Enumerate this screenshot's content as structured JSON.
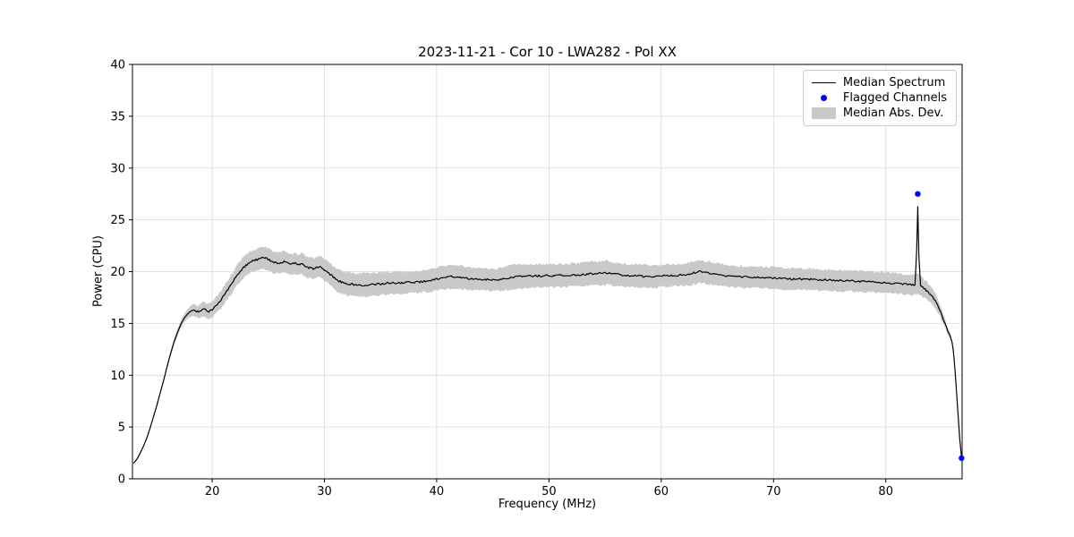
{
  "chart_data": {
    "type": "line",
    "title": "2023-11-21 - Cor 10 - LWA282 - Pol XX",
    "xlabel": "Frequency (MHz)",
    "ylabel": "Power (CPU)",
    "xlim": [
      12.9,
      86.8
    ],
    "ylim": [
      0,
      40
    ],
    "xticks": [
      20,
      30,
      40,
      50,
      60,
      70,
      80
    ],
    "yticks": [
      0,
      5,
      10,
      15,
      20,
      25,
      30,
      35,
      40
    ],
    "grid": true,
    "legend": {
      "position": "upper right",
      "median": "Median Spectrum",
      "flagged": "Flagged Channels",
      "mad": "Median Abs. Dev."
    },
    "colors": {
      "median_line": "#000000",
      "flagged": "#0000ff",
      "mad_band": "#c9c9c9",
      "grid": "#d9d9d9",
      "axes": "#000000"
    },
    "noise_amplitude": 0.09,
    "noise_step": 0.12,
    "flagged_channels": [
      [
        82.85,
        27.5
      ],
      [
        86.75,
        2.0
      ]
    ],
    "spectrum_format": [
      "freq_mhz",
      "median_power",
      "mad",
      "band_center_optional"
    ],
    "spectrum": [
      [
        13.0,
        1.5,
        0.05
      ],
      [
        13.3,
        1.9,
        0.06
      ],
      [
        13.6,
        2.5,
        0.07
      ],
      [
        13.9,
        3.2,
        0.08
      ],
      [
        14.2,
        4.0,
        0.09
      ],
      [
        14.5,
        5.0,
        0.1
      ],
      [
        14.8,
        6.1,
        0.12
      ],
      [
        15.1,
        7.2,
        0.14
      ],
      [
        15.4,
        8.4,
        0.16
      ],
      [
        15.7,
        9.6,
        0.18
      ],
      [
        16.0,
        10.9,
        0.2
      ],
      [
        16.3,
        12.1,
        0.24
      ],
      [
        16.6,
        13.2,
        0.28
      ],
      [
        16.9,
        14.1,
        0.32
      ],
      [
        17.2,
        14.9,
        0.36
      ],
      [
        17.5,
        15.5,
        0.4
      ],
      [
        17.8,
        15.9,
        0.45
      ],
      [
        18.0,
        16.1,
        0.5
      ],
      [
        18.2,
        16.25,
        0.55
      ],
      [
        18.4,
        16.3,
        0.58
      ],
      [
        18.6,
        16.15,
        0.6
      ],
      [
        18.8,
        16.1,
        0.62
      ],
      [
        19.0,
        16.2,
        0.65
      ],
      [
        19.2,
        16.35,
        0.68
      ],
      [
        19.4,
        16.3,
        0.7
      ],
      [
        19.6,
        16.15,
        0.72
      ],
      [
        19.8,
        16.2,
        0.74
      ],
      [
        20.0,
        16.35,
        0.76
      ],
      [
        20.2,
        16.55,
        0.78
      ],
      [
        20.4,
        16.8,
        0.8
      ],
      [
        20.6,
        17.05,
        0.82
      ],
      [
        20.8,
        17.3,
        0.85
      ],
      [
        21.0,
        17.65,
        0.87
      ],
      [
        21.2,
        17.95,
        0.88
      ],
      [
        21.4,
        18.3,
        0.9
      ],
      [
        21.6,
        18.6,
        0.92
      ],
      [
        21.8,
        18.95,
        0.94
      ],
      [
        22.0,
        19.3,
        0.95
      ],
      [
        22.2,
        19.6,
        0.96
      ],
      [
        22.4,
        19.9,
        0.97
      ],
      [
        22.6,
        20.15,
        0.98
      ],
      [
        22.8,
        20.4,
        0.99
      ],
      [
        23.0,
        20.6,
        1.0
      ],
      [
        23.2,
        20.75,
        1.0
      ],
      [
        23.4,
        20.9,
        1.02
      ],
      [
        23.6,
        21.0,
        1.03
      ],
      [
        23.8,
        21.1,
        1.04
      ],
      [
        24.0,
        21.15,
        1.05
      ],
      [
        24.2,
        21.2,
        1.06
      ],
      [
        24.4,
        21.3,
        1.07
      ],
      [
        24.6,
        21.35,
        1.08
      ],
      [
        24.8,
        21.3,
        1.08
      ],
      [
        25.0,
        21.2,
        1.07
      ],
      [
        25.2,
        21.05,
        1.06
      ],
      [
        25.4,
        20.95,
        1.05
      ],
      [
        25.6,
        20.9,
        1.04
      ],
      [
        25.8,
        20.85,
        1.04
      ],
      [
        26.0,
        20.8,
        1.03
      ],
      [
        26.2,
        20.9,
        1.03
      ],
      [
        26.4,
        21.0,
        1.02
      ],
      [
        26.6,
        20.9,
        1.02
      ],
      [
        26.8,
        20.8,
        1.01
      ],
      [
        27.0,
        20.7,
        1.0
      ],
      [
        27.2,
        20.75,
        1.0
      ],
      [
        27.4,
        20.8,
        1.0
      ],
      [
        27.6,
        20.65,
        1.0
      ],
      [
        27.8,
        20.7,
        1.0
      ],
      [
        28.0,
        20.8,
        1.0
      ],
      [
        28.2,
        20.6,
        1.0
      ],
      [
        28.4,
        20.45,
        1.0
      ],
      [
        28.6,
        20.35,
        1.0
      ],
      [
        28.8,
        20.4,
        1.0
      ],
      [
        29.0,
        20.3,
        1.0
      ],
      [
        29.2,
        20.35,
        1.0
      ],
      [
        29.4,
        20.45,
        1.0
      ],
      [
        29.6,
        20.5,
        1.02
      ],
      [
        29.8,
        20.35,
        1.02
      ],
      [
        30.0,
        20.2,
        1.03
      ],
      [
        30.2,
        20.05,
        1.04
      ],
      [
        30.4,
        19.85,
        1.05
      ],
      [
        30.6,
        19.65,
        1.05
      ],
      [
        30.8,
        19.45,
        1.06
      ],
      [
        31.0,
        19.3,
        1.07
      ],
      [
        31.2,
        19.15,
        1.08
      ],
      [
        31.4,
        19.05,
        1.08
      ],
      [
        31.6,
        18.95,
        1.09
      ],
      [
        31.8,
        18.9,
        1.1
      ],
      [
        32.0,
        18.85,
        1.1
      ],
      [
        32.3,
        18.8,
        1.1
      ],
      [
        32.6,
        18.75,
        1.1
      ],
      [
        32.9,
        18.7,
        1.12
      ],
      [
        33.2,
        18.68,
        1.12
      ],
      [
        33.5,
        18.7,
        1.13
      ],
      [
        33.8,
        18.72,
        1.12
      ],
      [
        34.1,
        18.75,
        1.12
      ],
      [
        34.4,
        18.78,
        1.1
      ],
      [
        34.7,
        18.8,
        1.1
      ],
      [
        35.0,
        18.8,
        1.1
      ],
      [
        35.3,
        18.85,
        1.1
      ],
      [
        35.6,
        18.9,
        1.08
      ],
      [
        35.9,
        18.88,
        1.08
      ],
      [
        36.2,
        18.9,
        1.06
      ],
      [
        36.5,
        18.92,
        1.06
      ],
      [
        36.8,
        18.9,
        1.05
      ],
      [
        37.1,
        18.92,
        1.05
      ],
      [
        37.4,
        18.95,
        1.05
      ],
      [
        37.7,
        19.0,
        1.05
      ],
      [
        38.0,
        18.95,
        1.05
      ],
      [
        38.3,
        18.98,
        1.05
      ],
      [
        38.6,
        19.02,
        1.05
      ],
      [
        38.9,
        19.08,
        1.06
      ],
      [
        39.2,
        19.12,
        1.07
      ],
      [
        39.5,
        19.18,
        1.08
      ],
      [
        39.8,
        19.25,
        1.1
      ],
      [
        40.1,
        19.3,
        1.12
      ],
      [
        40.4,
        19.4,
        1.13
      ],
      [
        40.7,
        19.45,
        1.14
      ],
      [
        41.0,
        19.5,
        1.15
      ],
      [
        41.3,
        19.52,
        1.15
      ],
      [
        41.6,
        19.5,
        1.14
      ],
      [
        41.9,
        19.48,
        1.13
      ],
      [
        42.2,
        19.45,
        1.12
      ],
      [
        42.5,
        19.4,
        1.1
      ],
      [
        42.8,
        19.35,
        1.1
      ],
      [
        43.1,
        19.32,
        1.08
      ],
      [
        43.4,
        19.3,
        1.08
      ],
      [
        43.7,
        19.3,
        1.06
      ],
      [
        44.0,
        19.28,
        1.06
      ],
      [
        44.3,
        19.25,
        1.05
      ],
      [
        44.6,
        19.22,
        1.05
      ],
      [
        44.9,
        19.2,
        1.05
      ],
      [
        45.2,
        19.2,
        1.06
      ],
      [
        45.5,
        19.22,
        1.08
      ],
      [
        45.8,
        19.28,
        1.1
      ],
      [
        46.1,
        19.32,
        1.12
      ],
      [
        46.4,
        19.38,
        1.14
      ],
      [
        46.7,
        19.45,
        1.15
      ],
      [
        47.0,
        19.5,
        1.16
      ],
      [
        47.3,
        19.52,
        1.16
      ],
      [
        47.6,
        19.5,
        1.15
      ],
      [
        47.9,
        19.52,
        1.14
      ],
      [
        48.2,
        19.55,
        1.13
      ],
      [
        48.5,
        19.58,
        1.12
      ],
      [
        48.8,
        19.6,
        1.11
      ],
      [
        49.1,
        19.6,
        1.1
      ],
      [
        49.4,
        19.58,
        1.1
      ],
      [
        49.7,
        19.6,
        1.1
      ],
      [
        50.0,
        19.62,
        1.1
      ],
      [
        50.3,
        19.6,
        1.1
      ],
      [
        50.6,
        19.62,
        1.1
      ],
      [
        50.9,
        19.65,
        1.1
      ],
      [
        51.2,
        19.62,
        1.1
      ],
      [
        51.5,
        19.65,
        1.1
      ],
      [
        51.8,
        19.68,
        1.1
      ],
      [
        52.1,
        19.7,
        1.1
      ],
      [
        52.4,
        19.68,
        1.1
      ],
      [
        52.7,
        19.7,
        1.12
      ],
      [
        53.0,
        19.72,
        1.12
      ],
      [
        53.3,
        19.75,
        1.13
      ],
      [
        53.6,
        19.78,
        1.13
      ],
      [
        53.9,
        19.8,
        1.14
      ],
      [
        54.2,
        19.82,
        1.14
      ],
      [
        54.5,
        19.85,
        1.15
      ],
      [
        54.8,
        19.88,
        1.15
      ],
      [
        55.1,
        19.9,
        1.15
      ],
      [
        55.4,
        19.85,
        1.14
      ],
      [
        55.7,
        19.8,
        1.13
      ],
      [
        56.0,
        19.75,
        1.12
      ],
      [
        56.3,
        19.7,
        1.11
      ],
      [
        56.6,
        19.68,
        1.1
      ],
      [
        56.9,
        19.65,
        1.1
      ],
      [
        57.2,
        19.62,
        1.1
      ],
      [
        57.5,
        19.6,
        1.1
      ],
      [
        57.8,
        19.6,
        1.1
      ],
      [
        58.1,
        19.58,
        1.1
      ],
      [
        58.4,
        19.55,
        1.1
      ],
      [
        58.7,
        19.52,
        1.1
      ],
      [
        59.0,
        19.5,
        1.1
      ],
      [
        59.3,
        19.52,
        1.1
      ],
      [
        59.6,
        19.55,
        1.1
      ],
      [
        59.9,
        19.58,
        1.1
      ],
      [
        60.2,
        19.6,
        1.1
      ],
      [
        60.5,
        19.62,
        1.08
      ],
      [
        60.8,
        19.6,
        1.08
      ],
      [
        61.1,
        19.62,
        1.06
      ],
      [
        61.4,
        19.65,
        1.06
      ],
      [
        61.7,
        19.68,
        1.06
      ],
      [
        62.0,
        19.7,
        1.08
      ],
      [
        62.3,
        19.75,
        1.08
      ],
      [
        62.6,
        19.8,
        1.1
      ],
      [
        62.9,
        19.88,
        1.1
      ],
      [
        63.2,
        19.95,
        1.1
      ],
      [
        63.5,
        20.0,
        1.1
      ],
      [
        63.8,
        19.95,
        1.1
      ],
      [
        64.1,
        19.9,
        1.1
      ],
      [
        64.4,
        19.85,
        1.1
      ],
      [
        64.7,
        19.78,
        1.1
      ],
      [
        65.0,
        19.72,
        1.1
      ],
      [
        65.3,
        19.68,
        1.08
      ],
      [
        65.6,
        19.62,
        1.08
      ],
      [
        65.9,
        19.6,
        1.06
      ],
      [
        66.2,
        19.58,
        1.06
      ],
      [
        66.5,
        19.55,
        1.05
      ],
      [
        66.8,
        19.52,
        1.05
      ],
      [
        67.1,
        19.5,
        1.05
      ],
      [
        67.4,
        19.5,
        1.05
      ],
      [
        67.7,
        19.48,
        1.05
      ],
      [
        68.0,
        19.48,
        1.05
      ],
      [
        68.3,
        19.45,
        1.05
      ],
      [
        68.6,
        19.45,
        1.05
      ],
      [
        68.9,
        19.42,
        1.05
      ],
      [
        69.2,
        19.42,
        1.05
      ],
      [
        69.5,
        19.4,
        1.05
      ],
      [
        69.8,
        19.4,
        1.05
      ],
      [
        70.1,
        19.38,
        1.05
      ],
      [
        70.4,
        19.35,
        1.05
      ],
      [
        70.7,
        19.35,
        1.04
      ],
      [
        71.0,
        19.32,
        1.04
      ],
      [
        71.3,
        19.32,
        1.04
      ],
      [
        71.6,
        19.3,
        1.04
      ],
      [
        71.9,
        19.3,
        1.04
      ],
      [
        72.2,
        19.3,
        1.04
      ],
      [
        72.5,
        19.28,
        1.04
      ],
      [
        72.8,
        19.28,
        1.03
      ],
      [
        73.1,
        19.25,
        1.03
      ],
      [
        73.4,
        19.25,
        1.03
      ],
      [
        73.7,
        19.22,
        1.03
      ],
      [
        74.0,
        19.22,
        1.02
      ],
      [
        74.3,
        19.2,
        1.02
      ],
      [
        74.6,
        19.2,
        1.02
      ],
      [
        74.9,
        19.18,
        1.02
      ],
      [
        75.2,
        19.18,
        1.01
      ],
      [
        75.5,
        19.15,
        1.01
      ],
      [
        75.8,
        19.15,
        1.01
      ],
      [
        76.1,
        19.12,
        1.0
      ],
      [
        76.4,
        19.12,
        1.0
      ],
      [
        76.7,
        19.1,
        1.0
      ],
      [
        77.0,
        19.1,
        1.0
      ],
      [
        77.3,
        19.08,
        1.0
      ],
      [
        77.6,
        19.05,
        1.0
      ],
      [
        77.9,
        19.05,
        1.0
      ],
      [
        78.2,
        19.02,
        1.0
      ],
      [
        78.5,
        19.0,
        1.0
      ],
      [
        78.8,
        19.0,
        1.0
      ],
      [
        79.1,
        18.98,
        1.0
      ],
      [
        79.4,
        18.95,
        1.0
      ],
      [
        79.7,
        18.95,
        1.0
      ],
      [
        80.0,
        18.92,
        1.0
      ],
      [
        80.3,
        18.9,
        1.0
      ],
      [
        80.6,
        18.9,
        1.0
      ],
      [
        80.9,
        18.88,
        1.0
      ],
      [
        81.2,
        18.85,
        0.98
      ],
      [
        81.5,
        18.82,
        0.98
      ],
      [
        81.8,
        18.78,
        0.96
      ],
      [
        82.1,
        18.75,
        0.96
      ],
      [
        82.4,
        18.72,
        0.95
      ],
      [
        82.6,
        18.75,
        0.95
      ],
      [
        82.75,
        22.0,
        0.95,
        18.78
      ],
      [
        82.85,
        26.3,
        0.95,
        18.8
      ],
      [
        82.95,
        21.5,
        0.95,
        18.75
      ],
      [
        83.1,
        18.6,
        0.92
      ],
      [
        83.3,
        18.45,
        0.9
      ],
      [
        83.5,
        18.3,
        0.88
      ],
      [
        83.7,
        18.1,
        0.85
      ],
      [
        83.9,
        17.9,
        0.8
      ],
      [
        84.1,
        17.65,
        0.76
      ],
      [
        84.3,
        17.35,
        0.72
      ],
      [
        84.5,
        17.0,
        0.68
      ],
      [
        84.7,
        16.6,
        0.62
      ],
      [
        84.9,
        16.1,
        0.56
      ],
      [
        85.1,
        15.5,
        0.5
      ],
      [
        85.3,
        14.9,
        0.42
      ],
      [
        85.5,
        14.3,
        0.35
      ],
      [
        85.7,
        13.9,
        0.28
      ],
      [
        85.9,
        13.2,
        0.2
      ],
      [
        86.0,
        12.5,
        0.16
      ],
      [
        86.1,
        11.4,
        0.13
      ],
      [
        86.2,
        10.0,
        0.11
      ],
      [
        86.3,
        8.4,
        0.1
      ],
      [
        86.4,
        6.8,
        0.09
      ],
      [
        86.5,
        5.2,
        0.08
      ],
      [
        86.6,
        3.7,
        0.07
      ],
      [
        86.7,
        2.6,
        0.06
      ],
      [
        86.75,
        2.0,
        0.05
      ]
    ]
  }
}
